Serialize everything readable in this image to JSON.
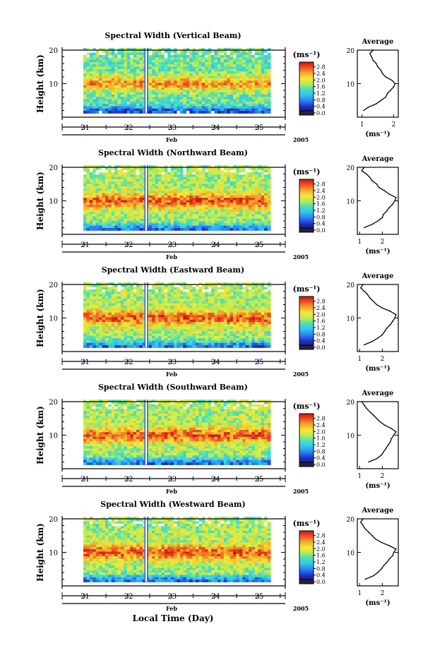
{
  "figure": {
    "x_label": "Local Time (Day)",
    "month_label": "Feb",
    "year_label": "2005",
    "colorbar_unit_label": "(ms⁻¹)",
    "average_title": "Average",
    "average_xlabel": "(ms⁻¹)",
    "y_label": "Height (km)"
  },
  "chart_data": [
    {
      "type": "heatmap",
      "title": "Spectral Width (Vertical Beam)",
      "x_ticks": [
        "21",
        "22",
        "23",
        "24",
        "25"
      ],
      "y_ticks": [
        "10",
        "20"
      ],
      "colorbar_ticks": [
        "0.0",
        "0.4",
        "0.8",
        "1.2",
        "1.6",
        "2.0",
        "2.4",
        "2.8"
      ],
      "ylim": [
        0,
        20
      ],
      "average_profile": {
        "x_ticks": [
          "1",
          "2"
        ],
        "xlim": [
          0.85,
          2.15
        ],
        "heights": [
          2,
          3,
          4,
          5,
          6,
          7,
          8,
          9,
          10,
          11,
          12,
          13,
          14,
          15,
          16,
          17,
          18,
          19,
          20
        ],
        "values": [
          1.05,
          1.2,
          1.45,
          1.6,
          1.75,
          1.8,
          1.9,
          2.0,
          2.05,
          1.95,
          1.75,
          1.65,
          1.6,
          1.5,
          1.45,
          1.35,
          1.3,
          1.25,
          1.35
        ]
      }
    },
    {
      "type": "heatmap",
      "title": "Spectral Width (Northward Beam)",
      "x_ticks": [
        "21",
        "22",
        "23",
        "24",
        "25"
      ],
      "y_ticks": [
        "10",
        "20"
      ],
      "colorbar_ticks": [
        "0.0",
        "0.4",
        "0.8",
        "1.2",
        "1.6",
        "2.0",
        "2.4",
        "2.8"
      ],
      "ylim": [
        0,
        20
      ],
      "average_profile": {
        "x_ticks": [
          "1",
          "2"
        ],
        "xlim": [
          0.9,
          2.7
        ],
        "heights": [
          2,
          3,
          4,
          5,
          6,
          7,
          8,
          9,
          10,
          11,
          12,
          13,
          14,
          15,
          16,
          17,
          18,
          19,
          20
        ],
        "values": [
          1.2,
          1.55,
          1.8,
          2.0,
          2.05,
          2.2,
          2.3,
          2.45,
          2.55,
          2.6,
          2.3,
          2.1,
          1.85,
          1.75,
          1.55,
          1.45,
          1.3,
          1.1,
          1.2
        ]
      }
    },
    {
      "type": "heatmap",
      "title": "Spectral Width (Eastward Beam)",
      "x_ticks": [
        "21",
        "22",
        "23",
        "24",
        "25"
      ],
      "y_ticks": [
        "10",
        "20"
      ],
      "colorbar_ticks": [
        "0.0",
        "0.4",
        "0.8",
        "1.2",
        "1.6",
        "2.0",
        "2.4",
        "2.8"
      ],
      "ylim": [
        0,
        20
      ],
      "average_profile": {
        "x_ticks": [
          "1",
          "2"
        ],
        "xlim": [
          0.9,
          2.7
        ],
        "heights": [
          2,
          3,
          4,
          5,
          6,
          7,
          8,
          9,
          10,
          11,
          12,
          13,
          14,
          15,
          16,
          17,
          18,
          19,
          20
        ],
        "values": [
          1.2,
          1.55,
          1.8,
          2.0,
          2.1,
          2.2,
          2.35,
          2.45,
          2.55,
          2.6,
          2.35,
          2.0,
          1.75,
          1.6,
          1.45,
          1.35,
          1.2,
          1.05,
          1.15
        ]
      }
    },
    {
      "type": "heatmap",
      "title": "Spectral Width (Southward Beam)",
      "x_ticks": [
        "21",
        "22",
        "23",
        "24",
        "25"
      ],
      "y_ticks": [
        "10",
        "20"
      ],
      "colorbar_ticks": [
        "0.0",
        "0.4",
        "0.8",
        "1.2",
        "1.6",
        "2.0",
        "2.4",
        "2.8"
      ],
      "ylim": [
        0,
        20
      ],
      "average_profile": {
        "x_ticks": [
          "1",
          "2"
        ],
        "xlim": [
          0.9,
          2.7
        ],
        "heights": [
          2,
          3,
          4,
          5,
          6,
          7,
          8,
          9,
          10,
          11,
          12,
          13,
          14,
          15,
          16,
          17,
          18,
          19,
          20
        ],
        "values": [
          1.4,
          1.75,
          1.95,
          2.05,
          2.15,
          2.25,
          2.35,
          2.4,
          2.5,
          2.6,
          2.4,
          2.1,
          1.9,
          1.75,
          1.6,
          1.45,
          1.3,
          1.2,
          1.1
        ]
      }
    },
    {
      "type": "heatmap",
      "title": "Spectral Width (Westward Beam)",
      "x_ticks": [
        "21",
        "22",
        "23",
        "24",
        "25"
      ],
      "y_ticks": [
        "10",
        "20"
      ],
      "colorbar_ticks": [
        "0.0",
        "0.4",
        "0.8",
        "1.2",
        "1.6",
        "2.0",
        "2.4",
        "2.8"
      ],
      "ylim": [
        0,
        20
      ],
      "average_profile": {
        "x_ticks": [
          "1",
          "2"
        ],
        "xlim": [
          0.9,
          2.7
        ],
        "heights": [
          2,
          3,
          4,
          5,
          6,
          7,
          8,
          9,
          10,
          11,
          12,
          13,
          14,
          15,
          16,
          17,
          18,
          19,
          20
        ],
        "values": [
          1.25,
          1.6,
          1.8,
          1.95,
          2.05,
          2.2,
          2.3,
          2.45,
          2.5,
          2.6,
          2.3,
          1.95,
          1.7,
          1.55,
          1.4,
          1.25,
          1.15,
          1.05,
          1.15
        ]
      }
    }
  ]
}
